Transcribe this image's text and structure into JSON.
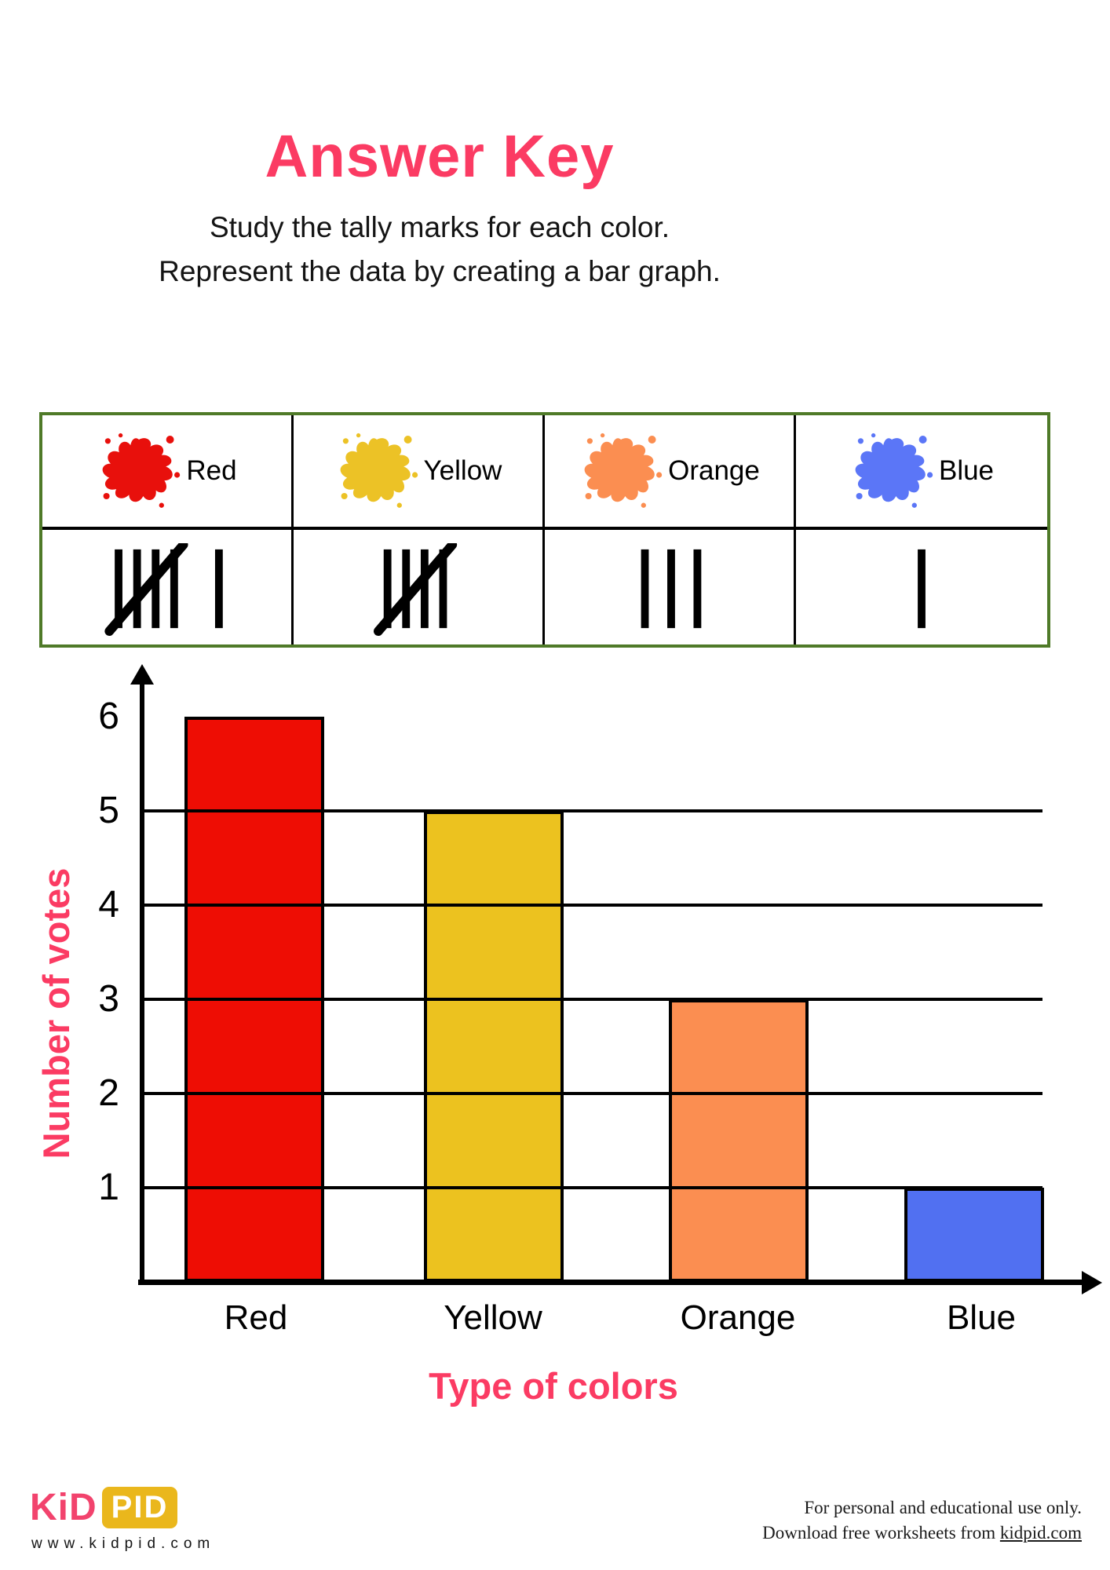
{
  "page": {
    "title": "Answer Key",
    "subtitle_line1": "Study the tally marks for each color.",
    "subtitle_line2": "Represent the data by creating a bar graph."
  },
  "tally_table": {
    "border_color": "#4f7a28",
    "columns": [
      {
        "label": "Red",
        "splat_color": "#e8100c",
        "tally_count": 6
      },
      {
        "label": "Yellow",
        "splat_color": "#ecc226",
        "tally_count": 5
      },
      {
        "label": "Orange",
        "splat_color": "#fb8e51",
        "tally_count": 3
      },
      {
        "label": "Blue",
        "splat_color": "#5b76f7",
        "tally_count": 1
      }
    ]
  },
  "chart_data": {
    "type": "bar",
    "categories": [
      "Red",
      "Yellow",
      "Orange",
      "Blue"
    ],
    "values": [
      6,
      5,
      3,
      1
    ],
    "bar_colors": [
      "#ee0d04",
      "#ecc21f",
      "#fb8e51",
      "#5170f1"
    ],
    "title": "",
    "xlabel": "Type of colors",
    "ylabel": "Number of votes",
    "y_ticks": [
      1,
      2,
      3,
      4,
      5,
      6
    ],
    "ylim": [
      0,
      6.2
    ],
    "grid": "horizontal-lines-at-1-to-5",
    "legend": "none",
    "axis_title_color": "#fb3b63"
  },
  "footer": {
    "logo_kid": "KiD",
    "logo_pid": "PID",
    "logo_url": "www.kidpid.com",
    "note_line1": "For personal and educational use only.",
    "note_line2_prefix": "Download free worksheets from ",
    "note_line2_link": "kidpid.com"
  }
}
